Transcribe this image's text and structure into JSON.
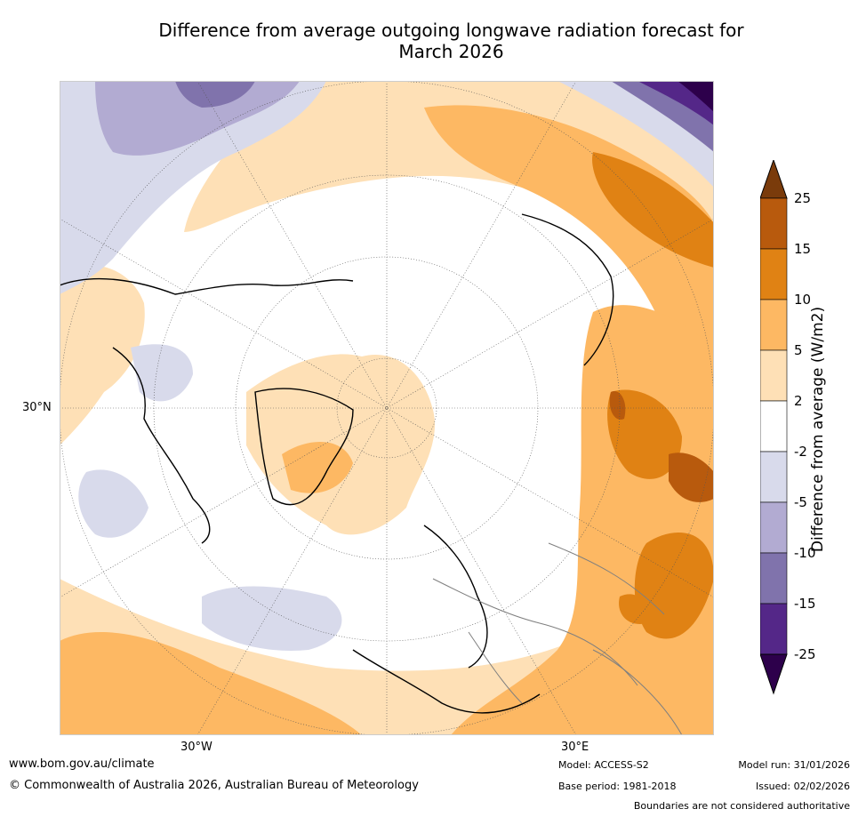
{
  "title": {
    "line1": "Difference from average outgoing longwave radiation forecast for",
    "line2": "March 2026"
  },
  "map": {
    "projection": "north-polar-stereographic",
    "labels": {
      "left_lat": "30°N",
      "bottom_left_lon": "30°W",
      "bottom_right_lon": "30°E"
    }
  },
  "colorbar": {
    "title": "Difference from average (W/m2)",
    "ticks": [
      "25",
      "15",
      "10",
      "5",
      "2",
      "-2",
      "-5",
      "-10",
      "-15",
      "-25"
    ],
    "colors": {
      "over": "#7a3b0b",
      "b15_25": "#b85a0d",
      "b10_15": "#e08214",
      "b5_10": "#fdb863",
      "b2_5": "#fee0b6",
      "neutral": "#ffffff",
      "bm5_m2": "#d8daeb",
      "bm10_m5": "#b2abd2",
      "bm15_m10": "#8073ac",
      "bm25_m15": "#542788",
      "under": "#2d004b"
    }
  },
  "footer": {
    "website": "www.bom.gov.au/climate",
    "copyright": "© Commonwealth of Australia 2026, Australian Bureau of Meteorology",
    "model": "Model: ACCESS-S2",
    "base_period": "Base period: 1981-2018",
    "model_run": "Model run: 31/01/2026",
    "issued": "Issued: 02/02/2026",
    "disclaimer": "Boundaries are not considered authoritative"
  }
}
